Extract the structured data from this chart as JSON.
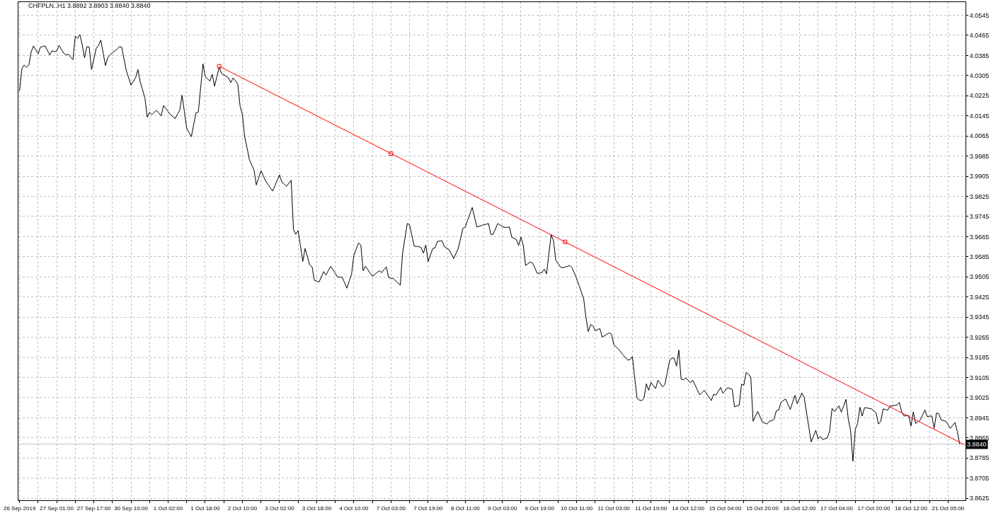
{
  "chart_data": {
    "type": "line",
    "title": "CHFPLN..H1 3.8892 3.8903 3.8840 3.8840",
    "categories": [
      "26 Sep 2019",
      null,
      null,
      null,
      null,
      null,
      null,
      null,
      null,
      null,
      null,
      null,
      null,
      null,
      null,
      null,
      "27 Sep 01:00",
      null,
      null,
      null,
      null,
      null,
      null,
      null,
      null,
      null,
      null,
      null,
      null,
      null,
      null,
      null,
      "27 Sep 17:00",
      null,
      null,
      null,
      null,
      null,
      null,
      null,
      null,
      null,
      null,
      null,
      null,
      null,
      null,
      null,
      "30 Sep 10:00",
      null,
      null,
      null,
      null,
      null,
      null,
      null,
      null,
      null,
      null,
      null,
      null,
      null,
      null,
      null,
      "1 Oct 02:00",
      null,
      null,
      null,
      null,
      null,
      null,
      null,
      null,
      null,
      null,
      null,
      null,
      null,
      null,
      null,
      "1 Oct 18:00",
      null,
      null,
      null,
      null,
      null,
      null,
      null,
      null,
      null,
      null,
      null,
      null,
      null,
      null,
      null,
      "2 Oct 10:00",
      null,
      null,
      null,
      null,
      null,
      null,
      null,
      null,
      null,
      null,
      null,
      null,
      null,
      null,
      null,
      "3 Oct 02:00",
      null,
      null,
      null,
      null,
      null,
      null,
      null,
      null,
      null,
      null,
      null,
      null,
      null,
      null,
      null,
      "3 Oct 18:00",
      null,
      null,
      null,
      null,
      null,
      null,
      null,
      null,
      null,
      null,
      null,
      null,
      null,
      null,
      null,
      "4 Oct 10:00",
      null,
      null,
      null,
      null,
      null,
      null,
      null,
      null,
      null,
      null,
      null,
      null,
      null,
      null,
      null,
      "7 Oct 03:00",
      null,
      null,
      null,
      null,
      null,
      null,
      null,
      null,
      null,
      null,
      null,
      null,
      null,
      null,
      null,
      "7 Oct 19:00",
      null,
      null,
      null,
      null,
      null,
      null,
      null,
      null,
      null,
      null,
      null,
      null,
      null,
      null,
      null,
      "8 Oct 11:00",
      null,
      null,
      null,
      null,
      null,
      null,
      null,
      null,
      null,
      null,
      null,
      null,
      null,
      null,
      null,
      "9 Oct 03:00",
      null,
      null,
      null,
      null,
      null,
      null,
      null,
      null,
      null,
      null,
      null,
      null,
      null,
      null,
      null,
      "9 Oct 19:00",
      null,
      null,
      null,
      null,
      null,
      null,
      null,
      null,
      null,
      null,
      null,
      null,
      null,
      null,
      null,
      "10 Oct 11:00",
      null,
      null,
      null,
      null,
      null,
      null,
      null,
      null,
      null,
      null,
      null,
      null,
      null,
      null,
      null,
      "11 Oct 03:00",
      null,
      null,
      null,
      null,
      null,
      null,
      null,
      null,
      null,
      null,
      null,
      null,
      null,
      null,
      null,
      "11 Oct 19:00",
      null,
      null,
      null,
      null,
      null,
      null,
      null,
      null,
      null,
      null,
      null,
      null,
      null,
      null,
      null,
      "14 Oct 12:00",
      null,
      null,
      null,
      null,
      null,
      null,
      null,
      null,
      null,
      null,
      null,
      null,
      null,
      null,
      null,
      "15 Oct 04:00",
      null,
      null,
      null,
      null,
      null,
      null,
      null,
      null,
      null,
      null,
      null,
      null,
      null,
      null,
      null,
      "15 Oct 20:00",
      null,
      null,
      null,
      null,
      null,
      null,
      null,
      null,
      null,
      null,
      null,
      null,
      null,
      null,
      null,
      "16 Oct 12:00",
      null,
      null,
      null,
      null,
      null,
      null,
      null,
      null,
      null,
      null,
      null,
      null,
      null,
      null,
      null,
      "17 Oct 04:00",
      null,
      null,
      null,
      null,
      null,
      null,
      null,
      null,
      null,
      null,
      null,
      null,
      null,
      null,
      null,
      "17 Oct 20:00",
      null,
      null,
      null,
      null,
      null,
      null,
      null,
      null,
      null,
      null,
      null,
      null,
      null,
      null,
      null,
      "18 Oct 12:00",
      null,
      null,
      null,
      null,
      null,
      null,
      null,
      null,
      null,
      null,
      null,
      null,
      null,
      null,
      null,
      "21 Oct 05:00",
      null,
      null,
      null,
      null,
      null,
      null,
      null
    ],
    "ylim": [
      3.8617,
      4.0597
    ],
    "yticks": [
      3.8625,
      3.8705,
      3.8785,
      3.8865,
      3.8945,
      3.9025,
      3.9105,
      3.9185,
      3.9265,
      3.9345,
      3.9425,
      3.9505,
      3.9585,
      3.9665,
      3.9745,
      3.9825,
      3.9905,
      3.9985,
      4.0065,
      4.0145,
      4.0225,
      4.0305,
      4.0385,
      4.0465,
      4.0545
    ],
    "grid": true,
    "legend": false,
    "ref_lines": [
      {
        "axis": "y",
        "value": 3.884,
        "label": "3.8840",
        "color": "#c0c0c0"
      }
    ],
    "series": [
      {
        "color": "#000000",
        "values": [
          4.0244,
          4.0333,
          4.0347,
          4.0338,
          4.0347,
          4.0399,
          4.0423,
          4.0407,
          4.0392,
          4.0418,
          4.0421,
          4.0423,
          4.0405,
          4.0387,
          4.0404,
          4.04,
          4.0402,
          4.0425,
          4.041,
          4.0394,
          4.0387,
          4.039,
          4.0379,
          4.0368,
          4.0462,
          4.0453,
          4.0468,
          4.0427,
          4.0376,
          4.042,
          4.0418,
          4.0329,
          4.0371,
          4.0413,
          4.0425,
          4.0446,
          4.0396,
          4.0345,
          4.0377,
          4.0387,
          4.0396,
          4.0403,
          4.041,
          4.042,
          4.0418,
          4.0371,
          4.0324,
          4.0296,
          4.0267,
          4.0282,
          4.0297,
          4.0329,
          4.0279,
          4.0248,
          4.0216,
          4.014,
          4.0159,
          4.015,
          4.0159,
          4.0167,
          4.0156,
          4.0145,
          4.0186,
          4.0174,
          4.0162,
          4.015,
          4.0142,
          4.0134,
          4.0151,
          4.0167,
          4.0227,
          4.0162,
          4.0096,
          4.0079,
          4.0062,
          4.011,
          4.0157,
          4.016,
          4.0256,
          4.0352,
          4.03,
          4.0292,
          4.0283,
          4.031,
          4.0263,
          4.0301,
          4.0338,
          4.0314,
          4.0308,
          4.0302,
          4.0296,
          4.0277,
          4.0296,
          4.0284,
          4.0272,
          4.0183,
          4.015,
          4.006,
          4.0018,
          3.9971,
          3.995,
          3.9929,
          3.987,
          3.9899,
          3.9927,
          3.9907,
          3.9886,
          3.9873,
          3.9859,
          3.9846,
          3.9867,
          3.9889,
          3.991,
          3.9882,
          3.9874,
          3.9865,
          3.9877,
          3.9889,
          3.9693,
          3.9674,
          3.9689,
          3.9628,
          3.9566,
          3.9618,
          3.9585,
          3.9552,
          3.9545,
          3.9491,
          3.9488,
          3.9484,
          3.9505,
          3.9526,
          3.9512,
          3.953,
          3.9547,
          3.9533,
          3.9519,
          3.9505,
          3.9504,
          3.9503,
          3.9482,
          3.946,
          3.9488,
          3.9515,
          3.959,
          3.9615,
          3.9639,
          3.9632,
          3.9529,
          3.9547,
          3.9534,
          3.952,
          3.9507,
          3.9514,
          3.9522,
          3.9529,
          3.9522,
          3.9534,
          3.9545,
          3.9502,
          3.95,
          3.9498,
          3.9489,
          3.9481,
          3.9472,
          3.9599,
          3.9658,
          3.9717,
          3.9712,
          3.967,
          3.9627,
          3.9626,
          3.9625,
          3.9621,
          3.9599,
          3.9632,
          3.9566,
          3.9592,
          3.9618,
          3.962,
          3.9646,
          3.9647,
          3.9648,
          3.9625,
          3.9619,
          3.9613,
          3.9596,
          3.9578,
          3.9598,
          3.9618,
          3.9658,
          3.9698,
          3.9703,
          3.9729,
          3.9755,
          3.9781,
          3.9742,
          3.9703,
          3.9706,
          3.9709,
          3.9712,
          3.9714,
          3.9717,
          3.9674,
          3.9674,
          3.9696,
          3.9717,
          3.9711,
          3.9705,
          3.9702,
          3.9701,
          3.9704,
          3.9663,
          3.9658,
          3.9654,
          3.963,
          3.9663,
          3.963,
          3.955,
          3.9557,
          3.9564,
          3.956,
          3.954,
          3.9519,
          3.952,
          3.9522,
          3.9536,
          3.9517,
          3.9595,
          3.9673,
          3.9649,
          3.9571,
          3.9558,
          3.9544,
          3.9541,
          3.9544,
          3.9547,
          3.955,
          3.9541,
          3.952,
          3.9498,
          3.9471,
          3.9445,
          3.9418,
          3.9343,
          3.9287,
          3.9315,
          3.931,
          3.9291,
          3.9295,
          3.9299,
          3.9266,
          3.9271,
          3.9277,
          3.9282,
          3.9277,
          3.9235,
          3.9227,
          3.9218,
          3.9206,
          3.9195,
          3.9183,
          3.9174,
          3.9176,
          3.9188,
          3.9103,
          3.9023,
          3.9015,
          3.9013,
          3.9023,
          3.908,
          3.9054,
          3.9085,
          3.9073,
          3.9061,
          3.9094,
          3.9081,
          3.9068,
          3.9077,
          3.9124,
          3.9171,
          3.9183,
          3.9181,
          3.915,
          3.9214,
          3.9098,
          3.9096,
          3.9103,
          3.9094,
          3.9084,
          3.9094,
          3.9075,
          3.9055,
          3.9036,
          3.9045,
          3.9054,
          3.904,
          3.9027,
          3.9013,
          3.9039,
          3.9035,
          3.905,
          3.9065,
          3.9042,
          3.9053,
          3.9064,
          3.9061,
          3.9058,
          3.8988,
          3.8992,
          3.8995,
          3.9078,
          3.9075,
          3.9125,
          3.9118,
          3.9106,
          3.8931,
          3.8951,
          3.897,
          3.8949,
          3.8928,
          3.8924,
          3.892,
          3.8931,
          3.8934,
          3.8938,
          3.8973,
          3.8975,
          3.9006,
          3.9013,
          3.902,
          3.8999,
          3.8978,
          3.9006,
          3.9034,
          3.9001,
          3.9022,
          3.9043,
          3.9025,
          3.8966,
          3.8908,
          3.8849,
          3.8872,
          3.8895,
          3.8861,
          3.887,
          3.8858,
          3.8862,
          3.8865,
          3.8894,
          3.8982,
          3.897,
          3.8981,
          3.8992,
          3.8967,
          3.8992,
          3.9018,
          3.894,
          3.8894,
          3.8772,
          3.8898,
          3.8922,
          3.8987,
          3.8952,
          3.8985,
          3.8984,
          3.8982,
          3.898,
          3.8972,
          3.8964,
          3.892,
          3.8931,
          3.898,
          3.8978,
          3.8975,
          3.8992,
          3.8993,
          3.8994,
          3.8995,
          3.9006,
          3.8968,
          3.8952,
          3.8953,
          3.8954,
          3.8912,
          3.8968,
          3.8922,
          3.8929,
          3.8936,
          3.8956,
          3.8976,
          3.895,
          3.8951,
          3.8952,
          3.8903,
          3.8964,
          3.8961,
          3.8936,
          3.8934,
          3.8931,
          3.8917,
          3.8903,
          3.8915,
          3.8926,
          3.8889,
          3.884,
          null,
          null
        ]
      },
      {
        "color": "#ff0000",
        "values": [
          null,
          null,
          null,
          null,
          null,
          null,
          null,
          null,
          null,
          null,
          null,
          null,
          null,
          null,
          null,
          null,
          null,
          null,
          null,
          null,
          null,
          null,
          null,
          null,
          null,
          null,
          null,
          null,
          null,
          null,
          null,
          null,
          null,
          null,
          null,
          null,
          null,
          null,
          null,
          null,
          null,
          null,
          null,
          null,
          null,
          null,
          null,
          null,
          null,
          null,
          null,
          null,
          null,
          null,
          null,
          null,
          null,
          null,
          null,
          null,
          null,
          null,
          null,
          null,
          null,
          null,
          null,
          null,
          null,
          null,
          null,
          null,
          null,
          null,
          null,
          null,
          null,
          null,
          null,
          null,
          null,
          null,
          null,
          null,
          null,
          null,
          4.0342,
          null,
          null,
          null,
          null,
          null,
          null,
          null,
          null,
          null,
          null,
          null,
          null,
          null,
          null,
          null,
          null,
          null,
          null,
          null,
          null,
          null,
          null,
          null,
          null,
          null,
          null,
          null,
          null,
          null,
          null,
          null,
          null,
          null,
          null,
          null,
          null,
          null,
          null,
          null,
          null,
          null,
          null,
          null,
          null,
          null,
          null,
          null,
          null,
          null,
          null,
          null,
          null,
          null,
          null,
          null,
          null,
          null,
          null,
          null,
          null,
          null,
          null,
          null,
          null,
          null,
          null,
          null,
          null,
          null,
          null,
          null,
          null,
          null,
          null,
          null,
          null,
          null,
          null,
          null,
          null,
          null,
          null,
          null,
          null,
          null,
          null,
          null,
          null,
          null,
          null,
          null,
          null,
          null,
          null,
          null,
          null,
          null,
          null,
          null,
          null,
          null,
          null,
          null,
          null,
          null,
          null,
          null,
          null,
          null,
          null,
          null,
          null,
          null,
          null,
          null,
          null,
          null,
          null,
          null,
          null,
          null,
          null,
          null,
          null,
          null,
          null,
          null,
          null,
          null,
          null,
          null,
          null,
          null,
          null,
          null,
          null,
          null,
          null,
          null,
          null,
          null,
          null,
          null,
          null,
          null,
          null,
          null,
          null,
          null,
          null,
          null,
          null,
          null,
          null,
          null,
          null,
          null,
          null,
          null,
          null,
          null,
          null,
          null,
          null,
          null,
          null,
          null,
          null,
          null,
          null,
          null,
          null,
          null,
          null,
          null,
          null,
          null,
          null,
          null,
          null,
          null,
          null,
          null,
          null,
          null,
          null,
          null,
          null,
          null,
          null,
          null,
          null,
          null,
          null,
          null,
          null,
          null,
          null,
          null,
          null,
          null,
          null,
          null,
          null,
          null,
          null,
          null,
          null,
          null,
          null,
          null,
          null,
          null,
          null,
          null,
          null,
          null,
          null,
          null,
          null,
          null,
          null,
          null,
          null,
          null,
          null,
          null,
          null,
          null,
          null,
          null,
          null,
          null,
          null,
          null,
          null,
          null,
          null,
          null,
          null,
          null,
          null,
          null,
          null,
          null,
          null,
          null,
          null,
          null,
          null,
          null,
          null,
          null,
          null,
          null,
          null,
          null,
          null,
          null,
          null,
          null,
          null,
          null,
          null,
          null,
          null,
          null,
          null,
          null,
          null,
          null,
          null,
          null,
          null,
          null,
          null,
          null,
          null,
          null,
          null,
          null,
          null,
          null,
          null,
          null,
          null,
          null,
          null,
          null,
          null,
          null,
          null,
          null,
          null,
          null,
          null,
          null,
          null,
          null,
          null,
          null,
          null,
          null,
          null,
          null,
          null,
          null,
          null,
          null,
          null,
          null,
          null,
          null,
          null,
          null,
          null,
          null,
          null,
          null,
          null,
          3.8838
        ]
      },
      {
        "type": "scatter",
        "color": "#ff0000",
        "marker": "square",
        "values": [
          null,
          null,
          null,
          null,
          null,
          null,
          null,
          null,
          null,
          null,
          null,
          null,
          null,
          null,
          null,
          null,
          null,
          null,
          null,
          null,
          null,
          null,
          null,
          null,
          null,
          null,
          null,
          null,
          null,
          null,
          null,
          null,
          null,
          null,
          null,
          null,
          null,
          null,
          null,
          null,
          null,
          null,
          null,
          null,
          null,
          null,
          null,
          null,
          null,
          null,
          null,
          null,
          null,
          null,
          null,
          null,
          null,
          null,
          null,
          null,
          null,
          null,
          null,
          null,
          null,
          null,
          null,
          null,
          null,
          null,
          null,
          null,
          null,
          null,
          null,
          null,
          null,
          null,
          null,
          null,
          null,
          null,
          null,
          null,
          null,
          null,
          4.0342,
          null,
          null,
          null,
          null,
          null,
          null,
          null,
          null,
          null,
          null,
          null,
          null,
          null,
          null,
          null,
          null,
          null,
          null,
          null,
          null,
          null,
          null,
          null,
          null,
          null,
          null,
          null,
          null,
          null,
          null,
          null,
          null,
          null,
          null,
          null,
          null,
          null,
          null,
          null,
          null,
          null,
          null,
          null,
          null,
          null,
          null,
          null,
          null,
          null,
          null,
          null,
          null,
          null,
          null,
          null,
          null,
          null,
          null,
          null,
          null,
          null,
          null,
          null,
          null,
          null,
          null,
          null,
          null,
          null,
          null,
          null,
          null,
          null,
          3.9995,
          null,
          null,
          null,
          null,
          null,
          null,
          null,
          null,
          null,
          null,
          null,
          null,
          null,
          null,
          null,
          null,
          null,
          null,
          null,
          null,
          null,
          null,
          null,
          null,
          null,
          null,
          null,
          null,
          null,
          null,
          null,
          null,
          null,
          null,
          null,
          null,
          null,
          null,
          null,
          null,
          null,
          null,
          null,
          null,
          null,
          null,
          null,
          null,
          null,
          null,
          null,
          null,
          null,
          null,
          null,
          null,
          null,
          null,
          null,
          null,
          null,
          null,
          null,
          null,
          null,
          null,
          null,
          null,
          null,
          null,
          null,
          null,
          null,
          null,
          3.9644,
          null,
          null,
          null,
          null,
          null,
          null,
          null,
          null,
          null,
          null,
          null,
          null,
          null,
          null,
          null,
          null,
          null,
          null,
          null,
          null,
          null,
          null,
          null,
          null,
          null,
          null,
          null,
          null,
          null,
          null,
          null,
          null,
          null,
          null,
          null,
          null,
          null,
          null,
          null,
          null,
          null,
          null,
          null,
          null,
          null,
          null,
          null,
          null,
          null,
          null,
          null,
          null,
          null,
          null,
          null,
          null,
          null,
          null,
          null,
          null,
          null,
          null,
          null,
          null,
          null,
          null,
          null,
          null,
          null,
          null,
          null,
          null,
          null,
          null,
          null,
          null,
          null,
          null,
          null,
          null,
          null,
          null,
          null,
          null,
          null,
          null,
          null,
          null,
          null,
          null,
          null,
          null,
          null,
          null,
          null,
          null,
          null,
          null,
          null,
          null,
          null,
          null,
          null,
          null,
          null,
          null,
          null,
          null,
          null,
          null,
          null,
          null,
          null,
          null,
          null,
          null,
          null,
          null,
          null,
          null,
          null,
          null,
          null,
          null,
          null,
          null,
          null,
          null,
          null,
          null,
          null,
          null,
          null,
          null,
          null,
          null,
          null,
          null,
          null,
          null,
          null,
          null,
          null,
          null,
          null,
          null,
          null,
          null,
          null,
          null,
          null,
          null,
          null,
          null,
          null,
          null,
          null,
          null,
          null,
          null,
          null,
          null,
          null,
          null,
          null,
          null,
          null,
          null,
          null,
          null,
          null,
          null
        ]
      }
    ]
  }
}
